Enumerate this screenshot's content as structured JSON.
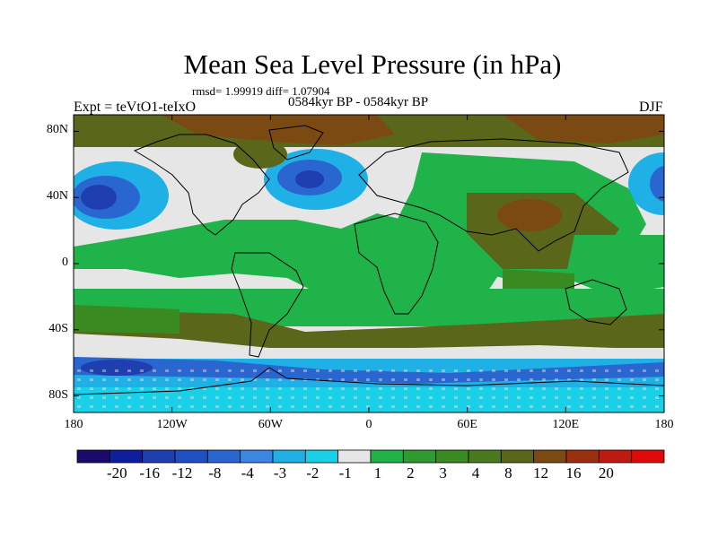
{
  "title": "Mean Sea Level Pressure (in hPa)",
  "stats": "rmsd= 1.99919 diff= 1.07904",
  "period": "0584kyr BP - 0584kyr BP",
  "experiment": "Expt = teVtO1-teIxO",
  "season": "DJF",
  "lat_axis": [
    {
      "value": 80,
      "label": "80N"
    },
    {
      "value": 40,
      "label": "40N"
    },
    {
      "value": 0,
      "label": "0"
    },
    {
      "value": -40,
      "label": "40S"
    },
    {
      "value": -80,
      "label": "80S"
    }
  ],
  "lon_axis": [
    {
      "value": -180,
      "label": "180"
    },
    {
      "value": -120,
      "label": "120W"
    },
    {
      "value": -60,
      "label": "60W"
    },
    {
      "value": 0,
      "label": "0"
    },
    {
      "value": 60,
      "label": "60E"
    },
    {
      "value": 120,
      "label": "120E"
    },
    {
      "value": 180,
      "label": "180"
    }
  ],
  "colorbar": {
    "colors": [
      "#1a0a6b",
      "#0d1f9c",
      "#1f3fb0",
      "#1f4fc0",
      "#2a66d0",
      "#3a86e0",
      "#1fb0e6",
      "#18d0e8",
      "#e6e6e6",
      "#1fb34a",
      "#2e9a30",
      "#3a8a22",
      "#4a7a1e",
      "#5a661a",
      "#7a4a12",
      "#9a3010",
      "#c01a10",
      "#e00a0a"
    ],
    "labels": [
      "-20",
      "-16",
      "-12",
      "-8",
      "-4",
      "-3",
      "-2",
      "-1",
      "1",
      "2",
      "3",
      "4",
      "8",
      "12",
      "16",
      "20"
    ]
  },
  "map_colors": {
    "neutral": "#e6e6e6",
    "green": "#1fb34a",
    "darkgreen": "#3a8a22",
    "olive": "#5a661a",
    "brown": "#7a4a12",
    "lightblue": "#1fb0e6",
    "cyan": "#18d0e8",
    "blue": "#2a66d0",
    "darkblue": "#1f3fb0"
  }
}
